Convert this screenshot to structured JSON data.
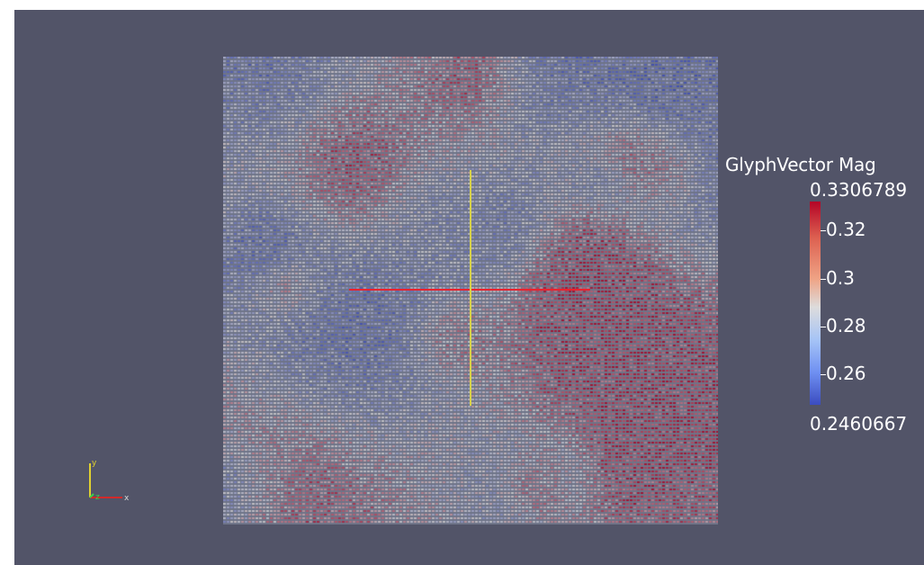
{
  "colorbar": {
    "title": "GlyphVector Mag",
    "max": "0.3306789",
    "min": "0.2460667",
    "ticks": [
      {
        "label": "0.32",
        "value": 0.32
      },
      {
        "label": "0.3",
        "value": 0.3
      },
      {
        "label": "0.28",
        "value": 0.28
      },
      {
        "label": "0.26",
        "value": 0.26
      }
    ],
    "range": [
      0.2460667,
      0.3306789
    ],
    "colormap": [
      "#3b4cc0",
      "#dddcdc",
      "#b40426"
    ]
  },
  "orientation_axes": {
    "labels": [
      "y",
      "z",
      "x"
    ],
    "colors": {
      "x": "#d22a2a",
      "y": "#e0d030",
      "z": "#3ad04a"
    }
  },
  "viewport": {
    "background": "#525468"
  },
  "center_axes": {
    "colors": {
      "horizontal": "#e8232f",
      "vertical": "#d8d24a"
    }
  }
}
